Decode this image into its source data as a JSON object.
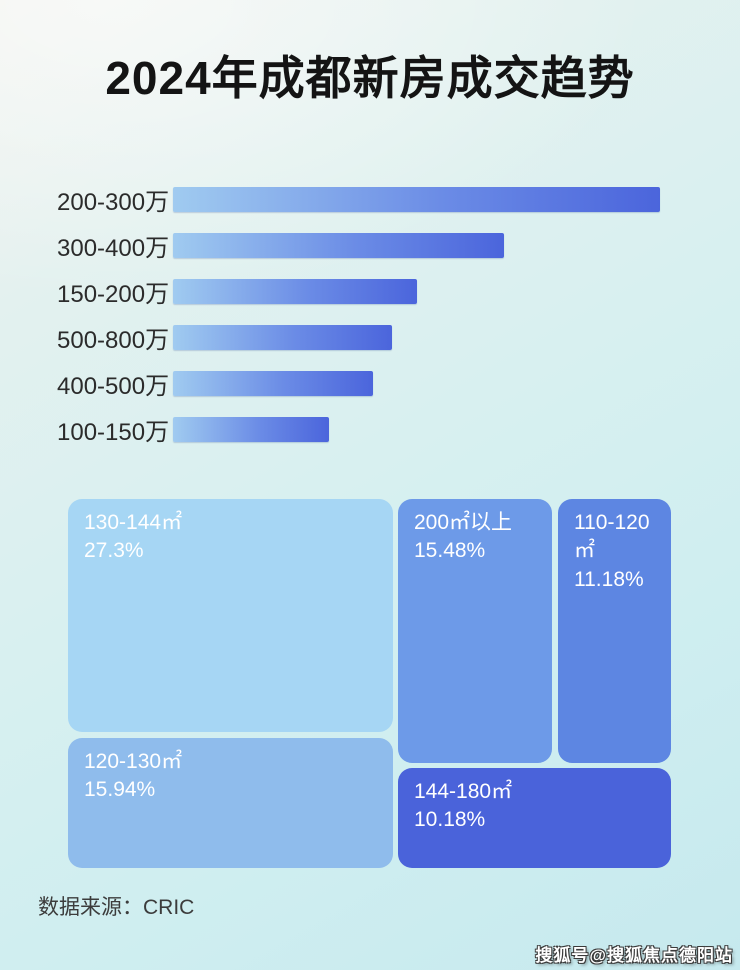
{
  "page": {
    "title": "2024年成都新房成交趋势",
    "source": "数据来源：CRIC",
    "watermark": "搜狐号@搜狐焦点德阳站"
  },
  "chart_data": [
    {
      "type": "bar",
      "orientation": "horizontal",
      "title": "2024年成都新房成交趋势",
      "categories": [
        "200-300万",
        "300-400万",
        "150-200万",
        "500-800万",
        "400-500万",
        "100-150万"
      ],
      "values": [
        100,
        68,
        50,
        45,
        41,
        32
      ],
      "values_unit": "relative bar length, % of longest bar (bars carry no numeric labels in image)",
      "xlabel": "",
      "ylabel": "",
      "grid": false,
      "legend": false,
      "bar_gradient": [
        "#a0cbf0",
        "#4b65dc"
      ]
    },
    {
      "type": "treemap",
      "cells": [
        {
          "label": "130-144㎡",
          "pct_label": "27.3%",
          "value": 27.3,
          "color": "#a6d6f4"
        },
        {
          "label": "120-130㎡",
          "pct_label": "15.94%",
          "value": 15.94,
          "color": "#8fbcec"
        },
        {
          "label": "200㎡以上",
          "pct_label": "15.48%",
          "value": 15.48,
          "color": "#6d9ae8"
        },
        {
          "label": "110-120㎡",
          "pct_label": "11.18%",
          "value": 11.18,
          "color": "#5d86e2"
        },
        {
          "label": "144-180㎡",
          "pct_label": "10.18%",
          "value": 10.18,
          "color": "#4a63da"
        }
      ]
    }
  ]
}
